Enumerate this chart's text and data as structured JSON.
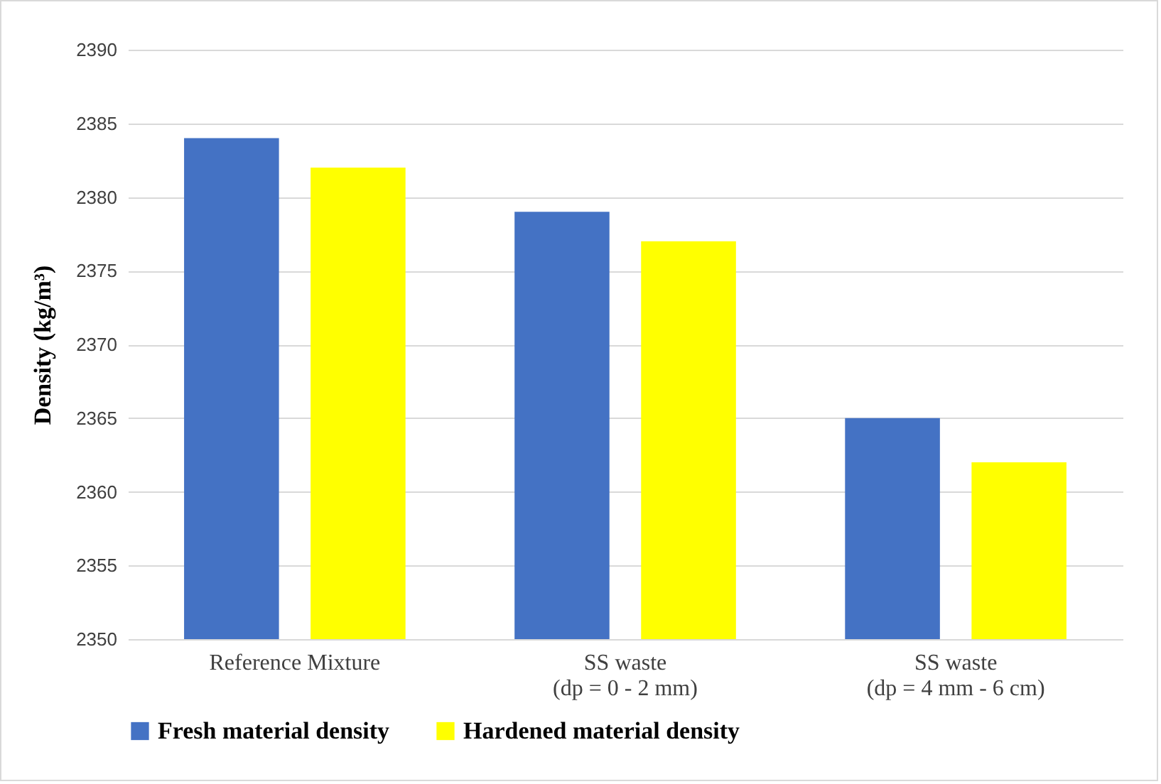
{
  "chart_data": {
    "type": "bar",
    "ylabel": "Density (kg/m³)",
    "categories": [
      "Reference Mixture",
      "SS waste\n(dp = 0 - 2 mm)",
      "SS waste\n(dp = 4 mm - 6 cm)"
    ],
    "series": [
      {
        "name": "Fresh material density",
        "color": "#4472c4",
        "values": [
          2384,
          2379,
          2365
        ]
      },
      {
        "name": "Hardened material density",
        "color": "#ffff00",
        "values": [
          2382,
          2377,
          2362
        ]
      }
    ],
    "ylim": [
      2350,
      2390
    ],
    "yticks": [
      2350,
      2355,
      2360,
      2365,
      2370,
      2375,
      2380,
      2385,
      2390
    ],
    "grid": "y",
    "legend": "bottom"
  }
}
